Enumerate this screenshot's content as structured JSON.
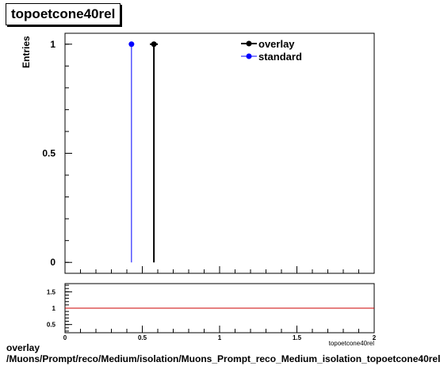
{
  "title": "topoetcone40rel",
  "chart_data": [
    {
      "type": "scatter",
      "ylabel": "Entries",
      "xlim": [
        0,
        2
      ],
      "ylim": [
        -0.05,
        1.05
      ],
      "yticks": [
        {
          "value": 0,
          "label": "0"
        },
        {
          "value": 0.5,
          "label": "0.5"
        },
        {
          "value": 1,
          "label": "1"
        }
      ],
      "series": [
        {
          "name": "overlay",
          "color": "#000000",
          "points": [
            {
              "x": 0.575,
              "y": 1
            }
          ]
        },
        {
          "name": "standard",
          "color": "#0000ff",
          "points": [
            {
              "x": 0.43,
              "y": 1
            }
          ]
        }
      ],
      "legend": "top-right"
    },
    {
      "type": "line",
      "xlabel": "topoetcone40rel",
      "xlim": [
        0,
        2
      ],
      "ylim": [
        0.25,
        1.75
      ],
      "xticks": [
        {
          "value": 0,
          "label": "0"
        },
        {
          "value": 0.5,
          "label": "0.5"
        },
        {
          "value": 1,
          "label": "1"
        },
        {
          "value": 1.5,
          "label": "1.5"
        },
        {
          "value": 2,
          "label": "2"
        }
      ],
      "yticks": [
        {
          "value": 0.5,
          "label": "0.5"
        },
        {
          "value": 1,
          "label": "1"
        },
        {
          "value": 1.5,
          "label": "1.5"
        }
      ],
      "reference_line": {
        "y": 1,
        "color": "#cc0000"
      }
    }
  ],
  "footer": {
    "line1": "overlay",
    "line2": "/Muons/Prompt/reco/Medium/isolation/Muons_Prompt_reco_Medium_isolation_topoetcone40rel"
  }
}
